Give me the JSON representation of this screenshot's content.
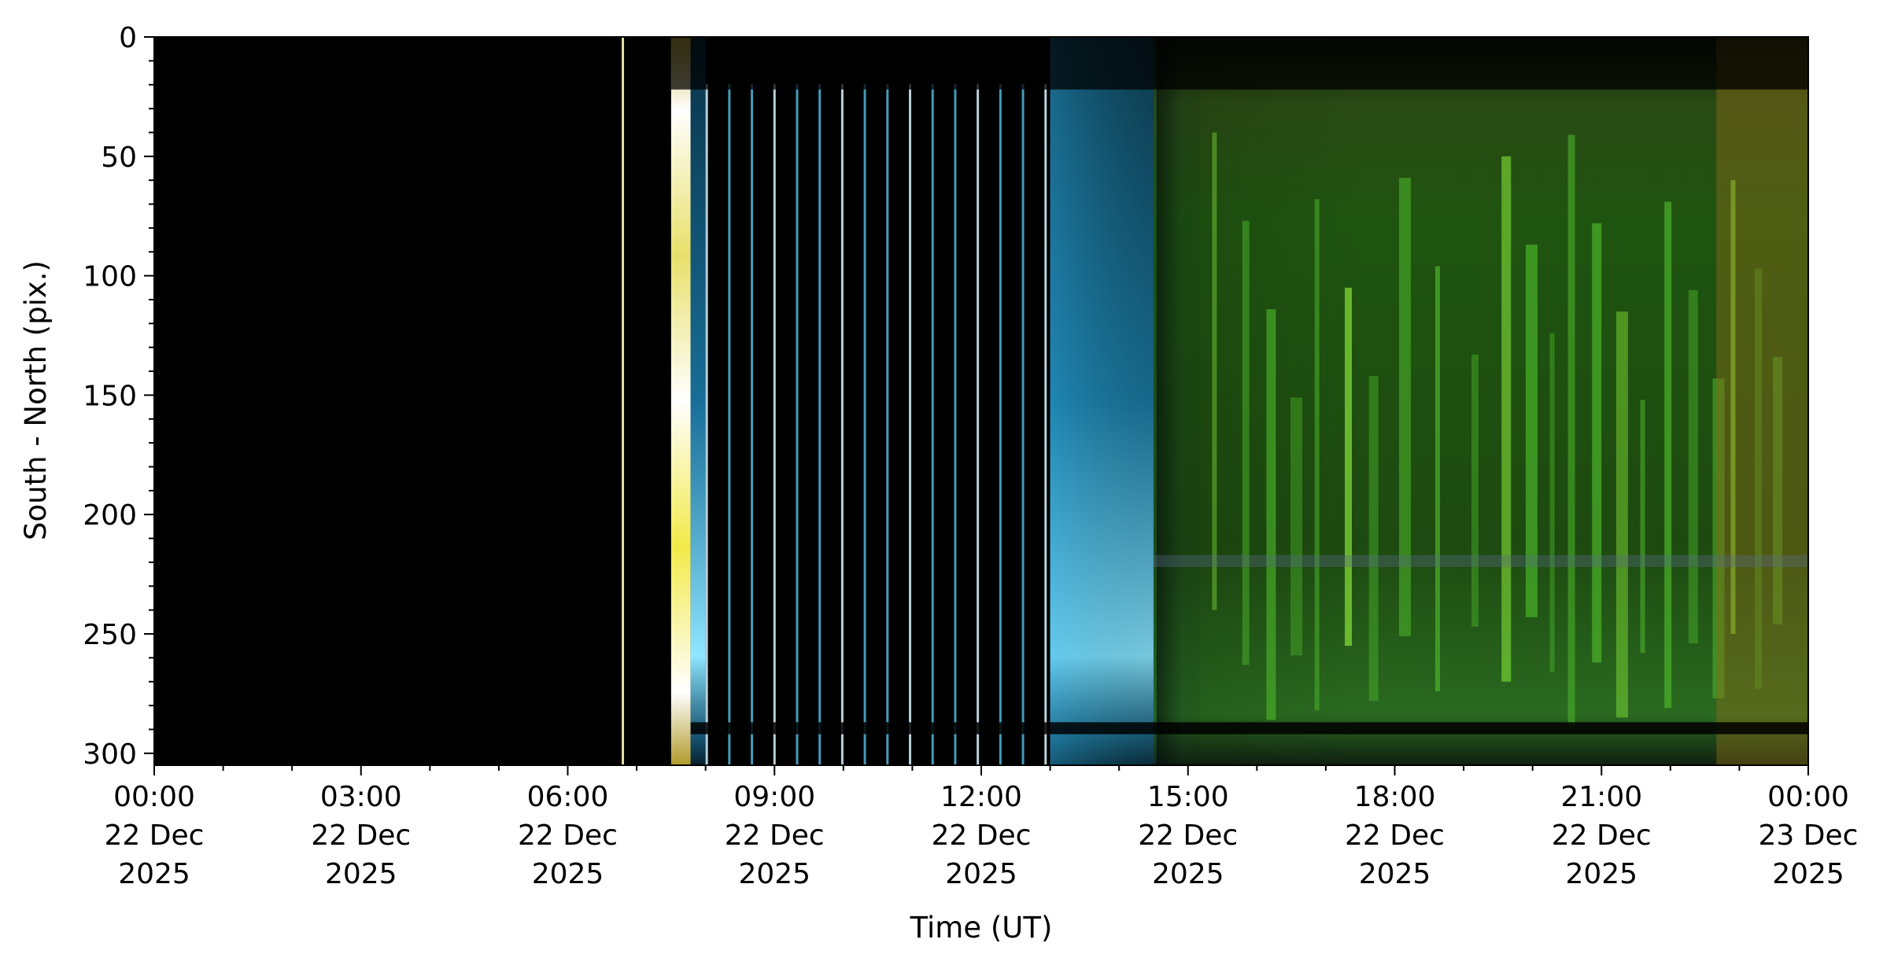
{
  "chart_data": {
    "type": "heatmap",
    "title": "",
    "xlabel": "Time (UT)",
    "ylabel": "South - North (pix.)",
    "x_range": [
      "2025-12-22T00:00",
      "2025-12-23T00:00"
    ],
    "ylim": [
      305,
      0
    ],
    "y_inverted": true,
    "x_ticks": [
      {
        "time": "2025-12-22T00:00",
        "lines": [
          "00:00",
          "22 Dec",
          "2025"
        ]
      },
      {
        "time": "2025-12-22T03:00",
        "lines": [
          "03:00",
          "22 Dec",
          "2025"
        ]
      },
      {
        "time": "2025-12-22T06:00",
        "lines": [
          "06:00",
          "22 Dec",
          "2025"
        ]
      },
      {
        "time": "2025-12-22T09:00",
        "lines": [
          "09:00",
          "22 Dec",
          "2025"
        ]
      },
      {
        "time": "2025-12-22T12:00",
        "lines": [
          "12:00",
          "22 Dec",
          "2025"
        ]
      },
      {
        "time": "2025-12-22T15:00",
        "lines": [
          "15:00",
          "22 Dec",
          "2025"
        ]
      },
      {
        "time": "2025-12-22T18:00",
        "lines": [
          "18:00",
          "22 Dec",
          "2025"
        ]
      },
      {
        "time": "2025-12-22T21:00",
        "lines": [
          "21:00",
          "22 Dec",
          "2025"
        ]
      },
      {
        "time": "2025-12-23T00:00",
        "lines": [
          "00:00",
          "23 Dec",
          "2025"
        ]
      }
    ],
    "y_ticks": [
      0,
      50,
      100,
      150,
      200,
      250,
      300
    ],
    "y_tick_labels": [
      "0",
      "50",
      "100",
      "150",
      "200",
      "250",
      "300"
    ],
    "colors": {
      "background": "#000000",
      "auroral_green": "#5fc72a",
      "twilight_blue": "#2fa4d4",
      "dawn_yellow": "#e9e07a",
      "late_amber": "#8a6a18"
    },
    "features": [
      {
        "kind": "line",
        "start": "2025-12-22T06:47",
        "end": "2025-12-22T06:49",
        "color": "#e6e3a6"
      },
      {
        "kind": "band",
        "start": "2025-12-22T07:30",
        "end": "2025-12-22T07:47",
        "color": "#e9e07a"
      },
      {
        "kind": "band",
        "start": "2025-12-22T07:47",
        "end": "2025-12-22T08:00",
        "color": "#2fa4d4"
      },
      {
        "kind": "band",
        "start": "2025-12-22T13:00",
        "end": "2025-12-22T14:30",
        "color": "#2fa4d4"
      },
      {
        "kind": "band",
        "start": "2025-12-22T14:30",
        "end": "2025-12-23T00:00",
        "color": "#5fc72a"
      }
    ]
  }
}
